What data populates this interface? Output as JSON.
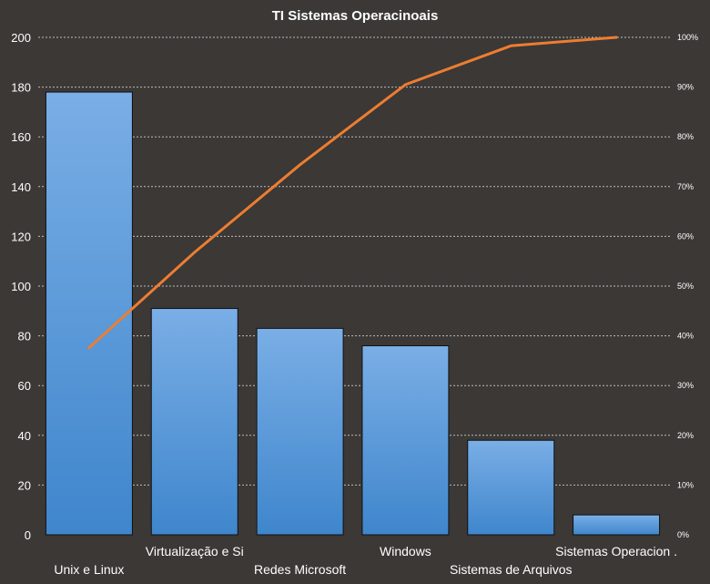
{
  "chart_data": {
    "type": "bar",
    "title": "TI Sistemas  Operacinoais",
    "categories": [
      "Unix e Linux",
      "Virtualização e Si",
      "Redes Microsoft",
      "Windows",
      "Sistemas de Arquivos",
      "Sistemas Operacion ."
    ],
    "series": [
      {
        "type": "bar",
        "values": [
          178,
          91,
          83,
          76,
          38,
          8
        ]
      },
      {
        "type": "line",
        "axis": "secondary",
        "values": [
          37.6,
          56.8,
          74.4,
          90.5,
          98.3,
          100
        ]
      }
    ],
    "ylim": [
      0,
      200
    ],
    "yticks": [
      "0",
      "20",
      "40",
      "60",
      "80",
      "100",
      "120",
      "140",
      "160",
      "180",
      "200"
    ],
    "y2lim": [
      0,
      100
    ],
    "y2ticks": [
      "0%",
      "10%",
      "20%",
      "30%",
      "40%",
      "50%",
      "60%",
      "70%",
      "80%",
      "90%",
      "100%"
    ],
    "grid": true,
    "colors": {
      "background": "#3b3836",
      "bar_top": "#7aaee6",
      "bar_bottom": "#3f86cc",
      "line": "#ed7d31",
      "grid": "#bdbdbd",
      "text": "#ffffff"
    }
  }
}
